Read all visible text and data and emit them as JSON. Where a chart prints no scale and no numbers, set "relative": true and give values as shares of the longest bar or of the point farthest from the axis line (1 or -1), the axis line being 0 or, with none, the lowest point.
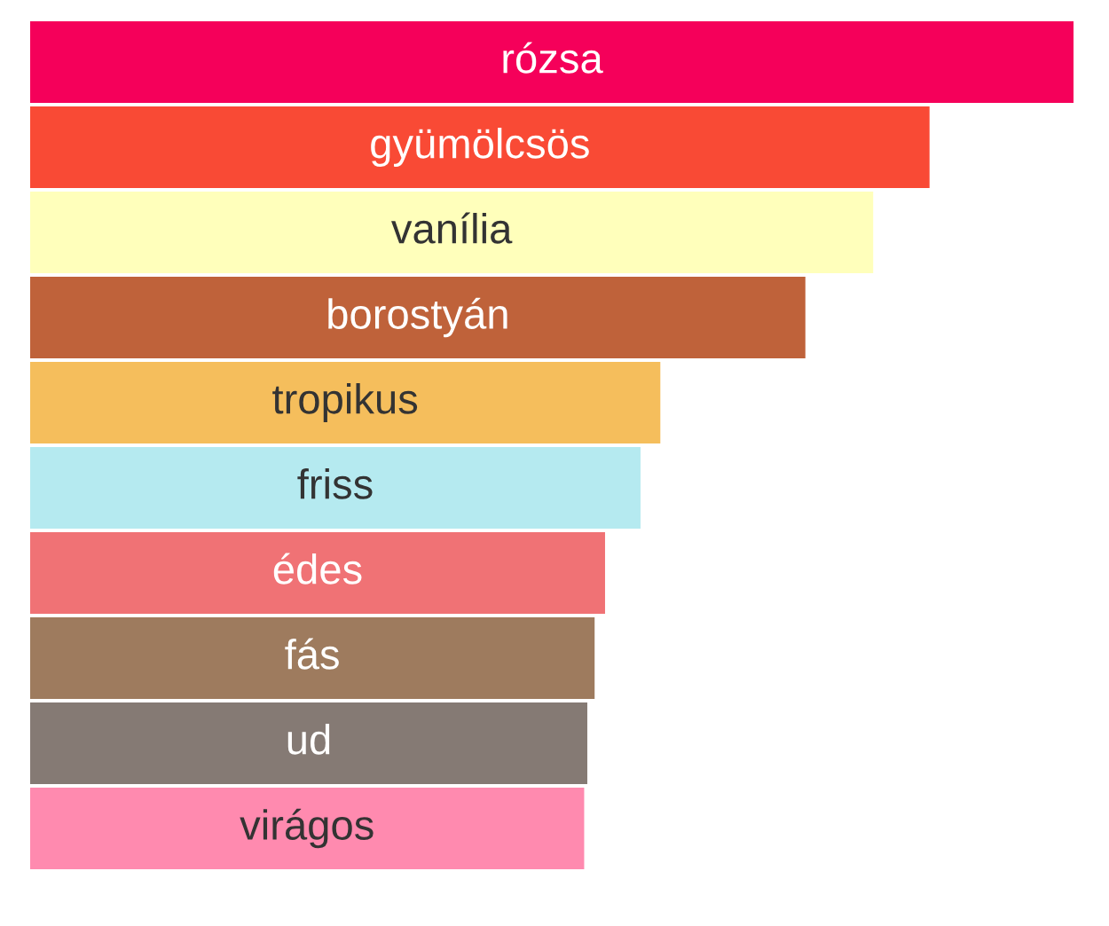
{
  "chart_data": {
    "type": "bar",
    "orientation": "horizontal",
    "relative": true,
    "categories": [
      "rózsa",
      "gyümölcsös",
      "vanília",
      "borostyán",
      "tropikus",
      "friss",
      "édes",
      "fás",
      "ud",
      "virágos"
    ],
    "values": [
      1,
      0.862,
      0.808,
      0.743,
      0.604,
      0.585,
      0.551,
      0.541,
      0.534,
      0.531
    ],
    "colors": [
      "#f5005a",
      "#f94a35",
      "#ffffbb",
      "#bf623a",
      "#f5be5c",
      "#b5eaf0",
      "#f07275",
      "#9e7b5e",
      "#857a74",
      "#ff8aaf"
    ]
  }
}
